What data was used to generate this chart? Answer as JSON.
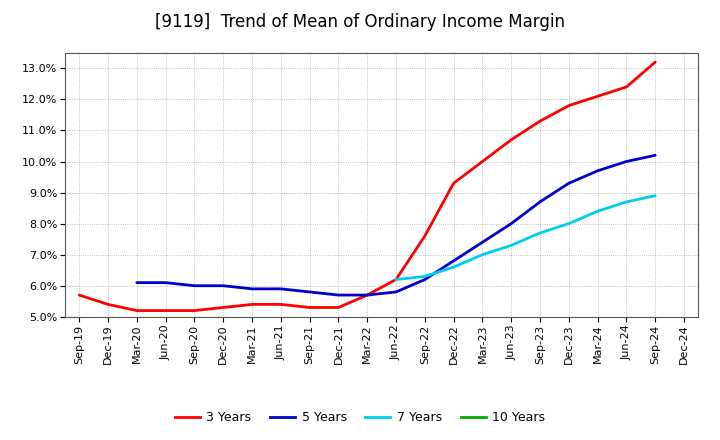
{
  "title": "[9119]  Trend of Mean of Ordinary Income Margin",
  "x_labels": [
    "Sep-19",
    "Dec-19",
    "Mar-20",
    "Jun-20",
    "Sep-20",
    "Dec-20",
    "Mar-21",
    "Jun-21",
    "Sep-21",
    "Dec-21",
    "Mar-22",
    "Jun-22",
    "Sep-22",
    "Dec-22",
    "Mar-23",
    "Jun-23",
    "Sep-23",
    "Dec-23",
    "Mar-24",
    "Jun-24",
    "Sep-24",
    "Dec-24"
  ],
  "ylim": [
    0.05,
    0.135
  ],
  "yticks": [
    0.05,
    0.06,
    0.07,
    0.08,
    0.09,
    0.1,
    0.11,
    0.12,
    0.13
  ],
  "series": {
    "3 Years": {
      "color": "#ff0000",
      "data_x": [
        0,
        1,
        2,
        3,
        4,
        5,
        6,
        7,
        8,
        9,
        10,
        11,
        12,
        13,
        14,
        15,
        16,
        17,
        18,
        19,
        20
      ],
      "data_y": [
        0.057,
        0.054,
        0.052,
        0.052,
        0.052,
        0.053,
        0.054,
        0.054,
        0.053,
        0.053,
        0.057,
        0.062,
        0.076,
        0.093,
        0.1,
        0.107,
        0.113,
        0.118,
        0.121,
        0.124,
        0.132
      ]
    },
    "5 Years": {
      "color": "#0000cc",
      "data_x": [
        2,
        3,
        4,
        5,
        6,
        7,
        8,
        9,
        10,
        11,
        12,
        13,
        14,
        15,
        16,
        17,
        18,
        19,
        20
      ],
      "data_y": [
        0.061,
        0.061,
        0.06,
        0.06,
        0.059,
        0.059,
        0.058,
        0.057,
        0.057,
        0.058,
        0.062,
        0.068,
        0.074,
        0.08,
        0.087,
        0.093,
        0.097,
        0.1,
        0.102
      ]
    },
    "7 Years": {
      "color": "#00ccee",
      "data_x": [
        11,
        12,
        13,
        14,
        15,
        16,
        17,
        18,
        19,
        20
      ],
      "data_y": [
        0.062,
        0.063,
        0.066,
        0.07,
        0.073,
        0.077,
        0.08,
        0.084,
        0.087,
        0.089
      ]
    },
    "10 Years": {
      "color": "#00aa00",
      "data_x": [],
      "data_y": []
    }
  },
  "legend_labels": [
    "3 Years",
    "5 Years",
    "7 Years",
    "10 Years"
  ],
  "legend_colors": [
    "#ff0000",
    "#0000cc",
    "#00ccee",
    "#00aa00"
  ],
  "background_color": "#ffffff",
  "plot_bg_color": "#ffffff",
  "grid_color": "#999999",
  "title_fontsize": 12,
  "tick_fontsize": 8
}
